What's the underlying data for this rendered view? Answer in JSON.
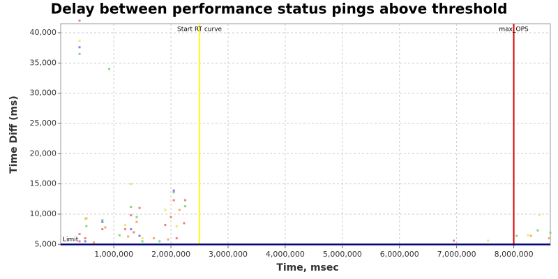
{
  "chart_data": {
    "type": "scatter",
    "title": "Delay between performance status pings above threshold",
    "x_label": "Time, msec",
    "y_label": "Time Diff (ms)",
    "xlim": [
      70000,
      8640000
    ],
    "ylim": [
      4800,
      41500
    ],
    "xticks": [
      {
        "value": 1000000,
        "label": "1,000,000"
      },
      {
        "value": 2000000,
        "label": "2,000,000"
      },
      {
        "value": 3000000,
        "label": "3,000,000"
      },
      {
        "value": 4000000,
        "label": "4,000,000"
      },
      {
        "value": 5000000,
        "label": "5,000,000"
      },
      {
        "value": 6000000,
        "label": "6,000,000"
      },
      {
        "value": 7000000,
        "label": "7,000,000"
      },
      {
        "value": 8000000,
        "label": "8,000,000"
      }
    ],
    "yticks": [
      {
        "value": 5000,
        "label": "5,000"
      },
      {
        "value": 10000,
        "label": "10,000"
      },
      {
        "value": 15000,
        "label": "15,000"
      },
      {
        "value": 20000,
        "label": "20,000"
      },
      {
        "value": 25000,
        "label": "25,000"
      },
      {
        "value": 30000,
        "label": "30,000"
      },
      {
        "value": 35000,
        "label": "35,000"
      },
      {
        "value": 40000,
        "label": "40,000"
      }
    ],
    "grid": true,
    "annotations": [
      {
        "axis": "x",
        "value": 2500000,
        "label": "Start RT curve",
        "color": "#ffff00"
      },
      {
        "axis": "x",
        "value": 8000000,
        "label": "max_OPS",
        "color": "#e00000"
      },
      {
        "axis": "y",
        "value": 5000,
        "label": "Limit",
        "color": "#000080"
      }
    ],
    "series": [
      {
        "color": "#f08080",
        "x": [
          400000,
          400000,
          500000,
          800000,
          1200000,
          1300000,
          1350000,
          1450000,
          2050000,
          2100000,
          2250000,
          2230000,
          6950000,
          400000,
          1900000,
          2000000
        ],
        "values": [
          42000,
          6700,
          6000,
          7500,
          7500,
          9800,
          7000,
          11000,
          12300,
          6000,
          12300,
          8500,
          5600,
          5500,
          8200,
          9500
        ]
      },
      {
        "color": "#80d880",
        "x": [
          400000,
          520000,
          920000,
          1300000,
          1400000,
          1500000,
          2050000,
          2250000,
          8050000,
          8420000,
          8640000,
          1100000,
          1800000,
          800000
        ],
        "values": [
          36500,
          8000,
          34000,
          11200,
          9500,
          5500,
          13600,
          11300,
          6400,
          7300,
          6900,
          6500,
          5500,
          9000
        ]
      },
      {
        "color": "#e8e870",
        "x": [
          400000,
          1300000,
          1900000,
          2100000,
          7550000,
          8450000,
          8250000,
          500000,
          1500000,
          1200000
        ],
        "values": [
          38700,
          15000,
          10700,
          8000,
          5600,
          9900,
          6500,
          9200,
          6000,
          8200
        ]
      },
      {
        "color": "#f0b060",
        "x": [
          520000,
          850000,
          1250000,
          1400000,
          1700000,
          2150000,
          8300000,
          8620000,
          650000,
          1950000
        ],
        "values": [
          9300,
          7800,
          6300,
          8700,
          6000,
          10700,
          6400,
          6000,
          5300,
          5800
        ]
      },
      {
        "color": "#8080f0",
        "x": [
          400000,
          800000,
          1300000,
          2050000,
          500000,
          1450000
        ],
        "values": [
          37600,
          8700,
          7500,
          13900,
          5500,
          6400
        ]
      }
    ]
  }
}
